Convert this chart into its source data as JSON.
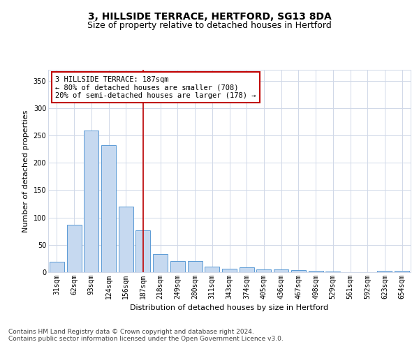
{
  "title": "3, HILLSIDE TERRACE, HERTFORD, SG13 8DA",
  "subtitle": "Size of property relative to detached houses in Hertford",
  "xlabel": "Distribution of detached houses by size in Hertford",
  "ylabel": "Number of detached properties",
  "categories": [
    "31sqm",
    "62sqm",
    "93sqm",
    "124sqm",
    "156sqm",
    "187sqm",
    "218sqm",
    "249sqm",
    "280sqm",
    "311sqm",
    "343sqm",
    "374sqm",
    "405sqm",
    "436sqm",
    "467sqm",
    "498sqm",
    "529sqm",
    "561sqm",
    "592sqm",
    "623sqm",
    "654sqm"
  ],
  "values": [
    19,
    87,
    259,
    232,
    120,
    76,
    33,
    20,
    20,
    10,
    7,
    9,
    5,
    5,
    4,
    3,
    1,
    0,
    0,
    2,
    2
  ],
  "bar_color": "#c6d9f0",
  "bar_edge_color": "#5b9bd5",
  "vline_x_index": 5,
  "vline_color": "#c00000",
  "annotation_text": "3 HILLSIDE TERRACE: 187sqm\n← 80% of detached houses are smaller (708)\n20% of semi-detached houses are larger (178) →",
  "annotation_box_color": "#ffffff",
  "annotation_box_edge": "#c00000",
  "ylim": [
    0,
    370
  ],
  "yticks": [
    0,
    50,
    100,
    150,
    200,
    250,
    300,
    350
  ],
  "footer_text": "Contains HM Land Registry data © Crown copyright and database right 2024.\nContains public sector information licensed under the Open Government Licence v3.0.",
  "bg_color": "#ffffff",
  "grid_color": "#d0d8e8",
  "title_fontsize": 10,
  "subtitle_fontsize": 9,
  "axis_label_fontsize": 8,
  "tick_fontsize": 7,
  "annotation_fontsize": 7.5,
  "footer_fontsize": 6.5
}
